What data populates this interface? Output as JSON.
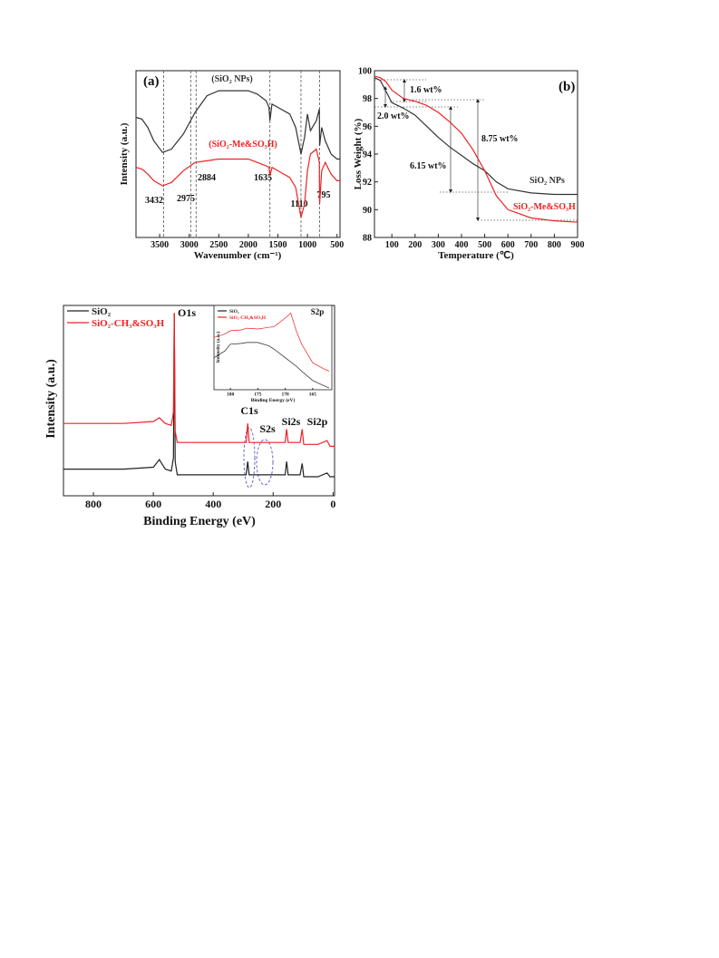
{
  "chart_data": [
    {
      "type": "line",
      "xlabel": "Wavenumber (cm⁻¹)",
      "ylabel": "Intensity (a.u.)",
      "xlim": [
        3900,
        450
      ],
      "ylim": [
        0,
        100
      ],
      "xticks": [
        3500,
        3000,
        2500,
        2000,
        1500,
        1000,
        500
      ],
      "peaks": [
        3432,
        2975,
        2884,
        1635,
        1110,
        795
      ],
      "annotations": [
        "(a)"
      ],
      "series": [
        {
          "name": "(SiO₂ NPs)",
          "color": "#333333",
          "x": [
            3900,
            3800,
            3700,
            3600,
            3450,
            3300,
            3100,
            2900,
            2700,
            2500,
            2300,
            2000,
            1850,
            1700,
            1650,
            1635,
            1600,
            1500,
            1300,
            1200,
            1110,
            1050,
            1000,
            950,
            850,
            800,
            795,
            760,
            700,
            600,
            500,
            450
          ],
          "values": [
            72,
            71,
            66,
            58,
            51,
            53,
            62,
            75,
            85,
            88,
            88,
            88,
            86,
            82,
            78,
            70,
            80,
            78,
            74,
            66,
            50,
            60,
            74,
            64,
            70,
            77,
            55,
            66,
            58,
            50,
            47,
            47
          ]
        },
        {
          "name": "(SiO₂-Me&SO₃H)",
          "color": "#ee2222",
          "x": [
            3900,
            3800,
            3700,
            3600,
            3450,
            3300,
            3100,
            2900,
            2700,
            2500,
            2300,
            2000,
            1850,
            1700,
            1650,
            1635,
            1600,
            1500,
            1300,
            1200,
            1110,
            1050,
            1000,
            950,
            850,
            800,
            795,
            760,
            700,
            600,
            500,
            450
          ],
          "values": [
            42,
            41,
            38,
            34,
            31,
            33,
            40,
            45,
            46,
            47,
            47,
            47,
            45,
            43,
            42,
            37,
            42,
            40,
            36,
            30,
            12,
            20,
            40,
            50,
            53,
            45,
            20,
            40,
            45,
            38,
            34,
            34
          ]
        }
      ]
    },
    {
      "type": "line",
      "xlabel": "Temperature (℃)",
      "ylabel": "Loss Weight (%)",
      "xlim": [
        25,
        900
      ],
      "ylim": [
        88,
        100
      ],
      "xticks": [
        100,
        200,
        300,
        400,
        500,
        600,
        700,
        800,
        900
      ],
      "yticks": [
        88,
        90,
        92,
        94,
        96,
        98,
        100
      ],
      "annotations": [
        "(b)",
        "1.6 wt%",
        "2.0 wt%",
        "8.75 wt%",
        "6.15 wt%"
      ],
      "series": [
        {
          "name": "SiO₂ NPs",
          "color": "#333333",
          "x": [
            25,
            50,
            75,
            100,
            150,
            200,
            250,
            300,
            350,
            400,
            450,
            500,
            550,
            600,
            700,
            800,
            900
          ],
          "values": [
            99.5,
            99.3,
            98.5,
            97.7,
            97.3,
            96.8,
            96.0,
            95.2,
            94.5,
            93.9,
            93.3,
            92.8,
            92.0,
            91.5,
            91.2,
            91.1,
            91.1
          ]
        },
        {
          "name": "SiO₂-Me&SO₃H",
          "color": "#ee2222",
          "x": [
            25,
            50,
            75,
            100,
            150,
            200,
            250,
            300,
            350,
            400,
            450,
            500,
            550,
            600,
            700,
            800,
            900
          ],
          "values": [
            99.6,
            99.5,
            99.2,
            98.6,
            98.0,
            97.8,
            97.5,
            97.0,
            96.3,
            95.5,
            94.3,
            92.8,
            91.0,
            90.0,
            89.4,
            89.2,
            89.1
          ]
        }
      ]
    },
    {
      "type": "line",
      "xlabel": "Binding Energy (eV)",
      "ylabel": "Intensity (a.u.)",
      "xlim": [
        900,
        -5
      ],
      "ylim": [
        0,
        100
      ],
      "xticks": [
        800,
        600,
        400,
        200,
        0
      ],
      "annotations": [
        "O1s",
        "C1s",
        "S2s",
        "Si2s",
        "Si2p"
      ],
      "series": [
        {
          "name": "SiO₂",
          "color": "#222222",
          "x": [
            900,
            700,
            600,
            580,
            560,
            540,
            533,
            530,
            527,
            520,
            400,
            300,
            290,
            285,
            280,
            270,
            200,
            160,
            155,
            150,
            110,
            103,
            98,
            50,
            20,
            10,
            -5
          ],
          "values": [
            14,
            14,
            15,
            19,
            14,
            13,
            20,
            96,
            18,
            11,
            11,
            11,
            11,
            18,
            11,
            11,
            11,
            11,
            18,
            11,
            11,
            17,
            10,
            10,
            12,
            10,
            10
          ]
        },
        {
          "name": "SiO₂-CH₃&SO₃H",
          "color": "#ee2222",
          "x": [
            900,
            700,
            600,
            580,
            560,
            540,
            533,
            530,
            527,
            520,
            400,
            300,
            290,
            285,
            280,
            270,
            200,
            160,
            155,
            150,
            110,
            103,
            98,
            50,
            20,
            10,
            -5
          ],
          "values": [
            38,
            38,
            39,
            41,
            38,
            37,
            44,
            96,
            34,
            28,
            28,
            28,
            28,
            38,
            28,
            28,
            28,
            28,
            35,
            28,
            28,
            35,
            27,
            27,
            29,
            26,
            26
          ]
        }
      ],
      "inset": {
        "type": "line",
        "xlabel": "Binding Energy (eV)",
        "ylabel": "Intensity (a.u.)",
        "xlim": [
          183,
          161.5
        ],
        "ylim": [
          0,
          100
        ],
        "xticks": [
          180,
          175,
          170,
          165
        ],
        "annotations": [
          "S2p"
        ],
        "series": [
          {
            "name": "SiO₂",
            "color": "#222222",
            "x": [
              183,
              181,
              180,
              178,
              177,
              175,
              173,
              172,
              170,
              168,
              167,
              165,
              163,
              162
            ],
            "values": [
              38,
              46,
              54,
              55,
              56,
              56,
              52,
              48,
              38,
              28,
              22,
              11,
              5,
              2
            ]
          },
          {
            "name": "SiO₂-CH₃&SO₃H",
            "color": "#ee2222",
            "x": [
              183,
              181,
              180,
              178,
              177,
              175,
              173,
              172,
              170,
              169,
              168,
              167,
              165,
              163,
              162
            ],
            "values": [
              62,
              66,
              70,
              71,
              73,
              72,
              74,
              75,
              85,
              91,
              70,
              54,
              32,
              25,
              22
            ]
          }
        ]
      }
    }
  ]
}
